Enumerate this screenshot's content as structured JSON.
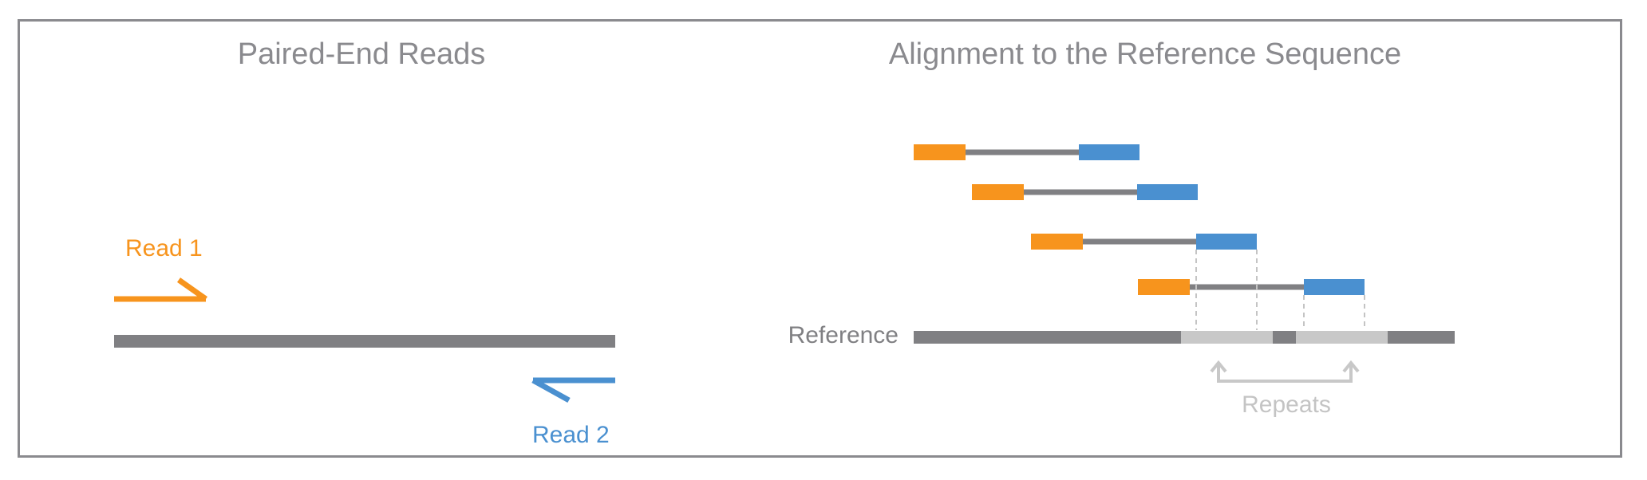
{
  "left_panel": {
    "title": "Paired-End Reads",
    "read1_label": "Read 1",
    "read2_label": "Read 2"
  },
  "right_panel": {
    "title": "Alignment to the  Reference Sequence",
    "reference_label": "Reference",
    "repeats_label": "Repeats"
  },
  "colors": {
    "read1": "#f7941d",
    "read2": "#4a90d0",
    "reference": "#808083",
    "repeat_region": "#c8c8c8",
    "text": "#8a8a8e",
    "frame": "#8a8a8e"
  }
}
